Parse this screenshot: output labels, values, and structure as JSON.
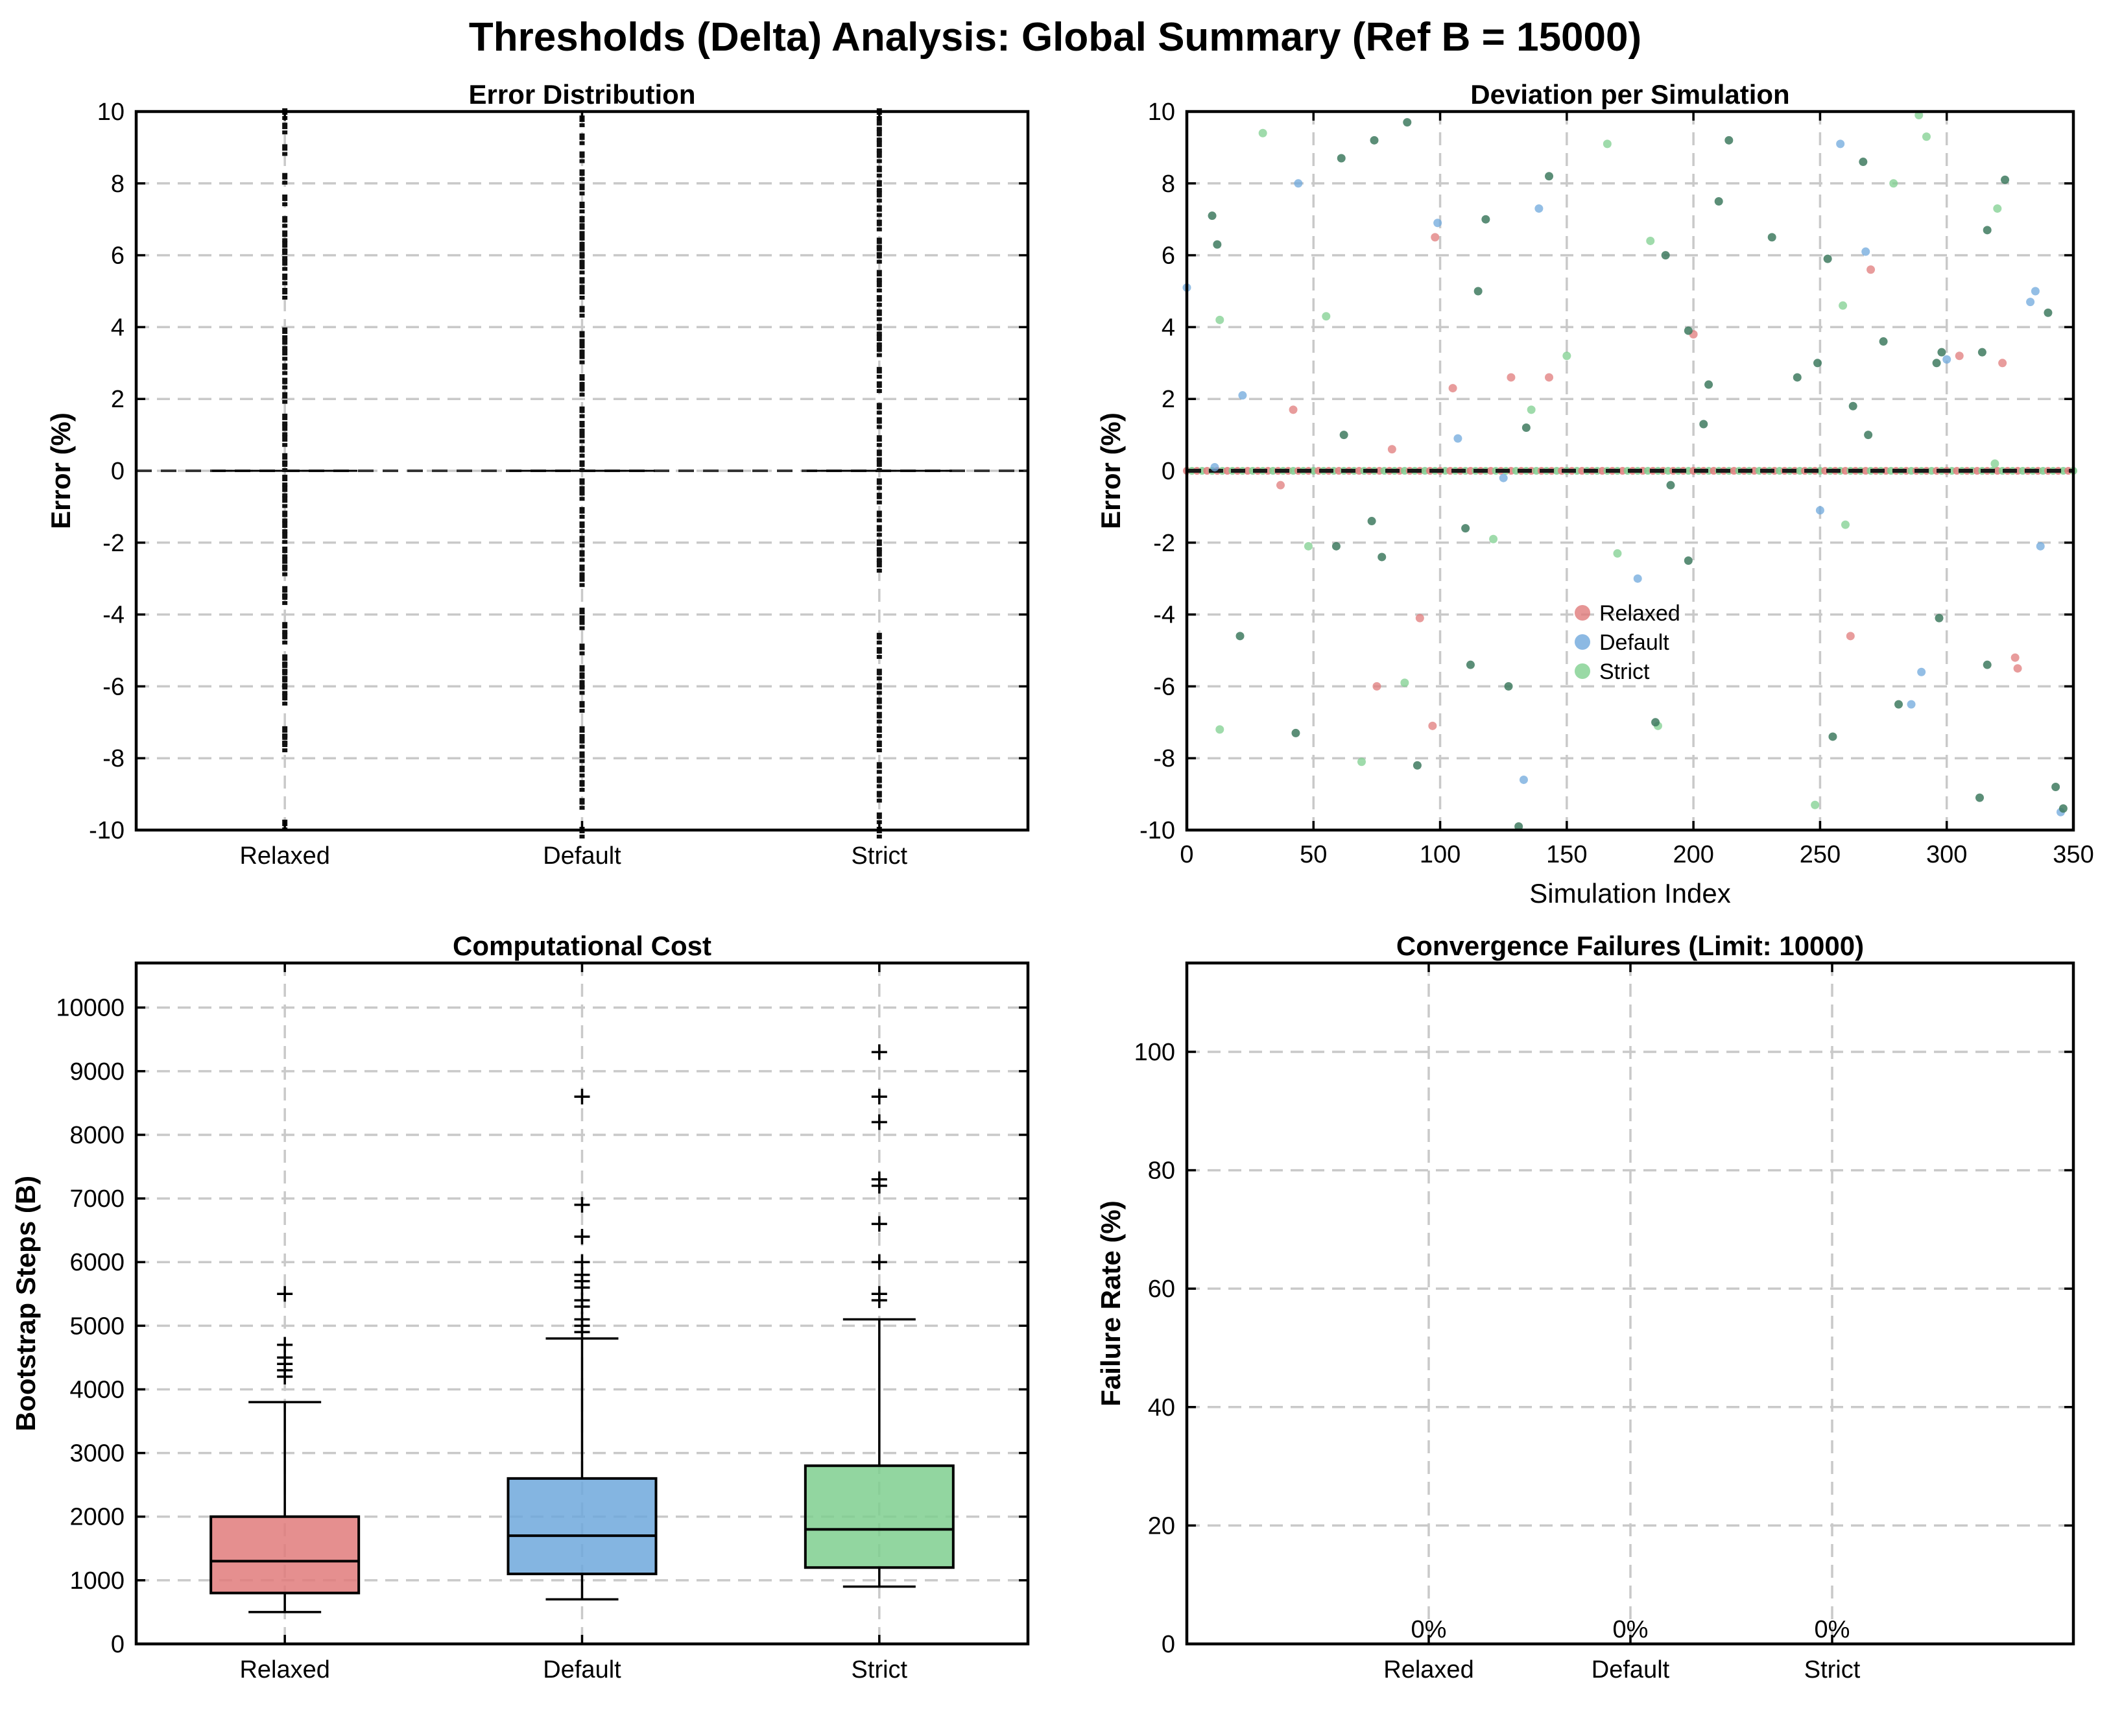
{
  "suptitle": "Thresholds (Delta) Analysis: Global Summary (Ref B = 15000)",
  "colors": {
    "relaxed": "#e07b7b",
    "default": "#6fa8dc",
    "strict": "#7fcf8f",
    "dark": "#3a3a3a"
  },
  "chart_data": [
    {
      "id": "error-distribution",
      "type": "strip",
      "title": "Error Distribution",
      "xlabel": "",
      "ylabel": "Error (%)",
      "categories": [
        "Relaxed",
        "Default",
        "Strict"
      ],
      "ylim": [
        -10,
        10
      ],
      "yticks": [
        -10,
        -8,
        -6,
        -4,
        -2,
        0,
        2,
        4,
        6,
        8,
        10
      ],
      "reference_line": 0,
      "grid": true,
      "series": [
        {
          "category": "Relaxed",
          "values": [
            -9.8,
            -7.6,
            -7.4,
            -7.2,
            -6.3,
            -6.0,
            -5.8,
            -5.6,
            -5.4,
            -5.2,
            -4.6,
            -4.3,
            -3.5,
            -3.3,
            -2.7,
            -2.5,
            -2.2,
            -1.8,
            -1.5,
            -1.2,
            -0.8,
            -0.5,
            -0.2,
            0.2,
            0.4,
            0.9,
            1.2,
            1.5,
            2.1,
            2.5,
            2.9,
            3.3,
            3.6,
            3.9,
            5.0,
            5.4,
            5.8,
            6.1,
            6.3,
            6.6,
            7.0,
            7.6,
            8.2,
            9.0,
            9.6,
            10.0
          ]
        },
        {
          "category": "Default",
          "values": [
            -10.0,
            -9.2,
            -8.7,
            -8.3,
            -7.9,
            -7.5,
            -7.2,
            -6.5,
            -6.0,
            -5.7,
            -5.5,
            -4.9,
            -4.2,
            -3.9,
            -3.0,
            -2.7,
            -2.3,
            -1.9,
            -1.5,
            -1.1,
            -0.6,
            -0.3,
            0.2,
            0.6,
            1.0,
            1.3,
            1.7,
            2.3,
            2.6,
            3.2,
            3.5,
            3.8,
            4.5,
            5.0,
            5.3,
            5.7,
            6.0,
            6.2,
            6.5,
            6.8,
            7.0,
            7.4,
            7.9,
            8.3,
            8.8,
            9.3,
            9.8
          ]
        },
        {
          "category": "Strict",
          "values": [
            -10.0,
            -9.6,
            -9.0,
            -8.6,
            -8.2,
            -7.6,
            -7.2,
            -6.8,
            -6.4,
            -6.0,
            -5.6,
            -5.0,
            -4.6,
            -2.6,
            -2.3,
            -2.0,
            -1.6,
            -1.2,
            -0.7,
            -0.3,
            0.2,
            0.5,
            0.9,
            1.4,
            1.8,
            2.4,
            2.8,
            3.4,
            3.7,
            4.0,
            4.4,
            4.8,
            5.2,
            5.5,
            6.0,
            6.2,
            6.4,
            6.9,
            7.3,
            7.7,
            8.0,
            8.4,
            8.8,
            9.1,
            9.4,
            9.7,
            10.0
          ]
        }
      ]
    },
    {
      "id": "deviation-per-simulation",
      "type": "scatter",
      "title": "Deviation per Simulation",
      "xlabel": "Simulation Index",
      "ylabel": "Error (%)",
      "xlim": [
        0,
        350
      ],
      "ylim": [
        -10,
        10
      ],
      "xticks": [
        0,
        50,
        100,
        150,
        200,
        250,
        300,
        350
      ],
      "yticks": [
        -10,
        -8,
        -6,
        -4,
        -2,
        0,
        2,
        4,
        6,
        8,
        10
      ],
      "legend_position": "center",
      "grid": true,
      "series": [
        {
          "name": "Relaxed",
          "points": [
            [
              37,
              -0.4
            ],
            [
              42,
              1.7
            ],
            [
              75,
              -6.0
            ],
            [
              81,
              0.6
            ],
            [
              92,
              -4.1
            ],
            [
              97,
              -7.1
            ],
            [
              98,
              6.5
            ],
            [
              105,
              2.3
            ],
            [
              128,
              2.6
            ],
            [
              143,
              2.6
            ],
            [
              200,
              3.8
            ],
            [
              262,
              -4.6
            ],
            [
              270,
              5.6
            ],
            [
              305,
              3.2
            ],
            [
              322,
              3.0
            ],
            [
              327,
              -5.2
            ],
            [
              328,
              -5.5
            ]
          ]
        },
        {
          "name": "Default",
          "points": [
            [
              0,
              5.1
            ],
            [
              11,
              0.1
            ],
            [
              22,
              2.1
            ],
            [
              44,
              8.0
            ],
            [
              99,
              6.9
            ],
            [
              107,
              0.9
            ],
            [
              125,
              -0.2
            ],
            [
              133,
              -8.6
            ],
            [
              139,
              7.3
            ],
            [
              178,
              -3.0
            ],
            [
              250,
              -1.1
            ],
            [
              258,
              9.1
            ],
            [
              268,
              6.1
            ],
            [
              286,
              -6.5
            ],
            [
              290,
              -5.6
            ],
            [
              300,
              3.1
            ],
            [
              333,
              4.7
            ],
            [
              335,
              5.0
            ],
            [
              337,
              -2.1
            ],
            [
              345,
              -9.5
            ]
          ]
        },
        {
          "name": "Strict",
          "points": [
            [
              13,
              -7.2
            ],
            [
              13,
              4.2
            ],
            [
              30,
              9.4
            ],
            [
              48,
              -2.1
            ],
            [
              55,
              4.3
            ],
            [
              69,
              -8.1
            ],
            [
              86,
              -5.9
            ],
            [
              121,
              -1.9
            ],
            [
              136,
              1.7
            ],
            [
              150,
              3.2
            ],
            [
              166,
              9.1
            ],
            [
              170,
              -2.3
            ],
            [
              183,
              6.4
            ],
            [
              186,
              -7.1
            ],
            [
              248,
              -9.3
            ],
            [
              259,
              4.6
            ],
            [
              260,
              -1.5
            ],
            [
              279,
              8.0
            ],
            [
              292,
              9.3
            ],
            [
              289,
              9.9
            ],
            [
              320,
              7.3
            ],
            [
              319,
              0.2
            ]
          ]
        },
        {
          "name": "",
          "points": [
            [
              10,
              7.1
            ],
            [
              12,
              6.3
            ],
            [
              21,
              -4.6
            ],
            [
              43,
              -7.3
            ],
            [
              59,
              -2.1
            ],
            [
              61,
              8.7
            ],
            [
              62,
              1.0
            ],
            [
              73,
              -1.4
            ],
            [
              74,
              9.2
            ],
            [
              77,
              -2.4
            ],
            [
              87,
              9.7
            ],
            [
              91,
              -8.2
            ],
            [
              110,
              -1.6
            ],
            [
              112,
              -5.4
            ],
            [
              115,
              5.0
            ],
            [
              118,
              7.0
            ],
            [
              127,
              -6.0
            ],
            [
              131,
              -9.9
            ],
            [
              134,
              1.2
            ],
            [
              143,
              8.2
            ],
            [
              185,
              -7.0
            ],
            [
              189,
              6.0
            ],
            [
              191,
              -0.4
            ],
            [
              198,
              -2.5
            ],
            [
              198,
              3.9
            ],
            [
              204,
              1.3
            ],
            [
              206,
              2.4
            ],
            [
              210,
              7.5
            ],
            [
              214,
              9.2
            ],
            [
              231,
              6.5
            ],
            [
              241,
              2.6
            ],
            [
              249,
              3.0
            ],
            [
              253,
              5.9
            ],
            [
              255,
              -7.4
            ],
            [
              263,
              1.8
            ],
            [
              267,
              8.6
            ],
            [
              269,
              1.0
            ],
            [
              275,
              3.6
            ],
            [
              281,
              -6.5
            ],
            [
              296,
              3.0
            ],
            [
              297,
              -4.1
            ],
            [
              298,
              3.3
            ],
            [
              313,
              -9.1
            ],
            [
              314,
              3.3
            ],
            [
              316,
              -5.4
            ],
            [
              316,
              6.7
            ],
            [
              323,
              8.1
            ],
            [
              340,
              4.4
            ],
            [
              343,
              -8.8
            ],
            [
              346,
              -9.4
            ]
          ]
        }
      ],
      "baseline_points_y": 0
    },
    {
      "id": "computational-cost",
      "type": "box",
      "title": "Computational Cost",
      "xlabel": "",
      "ylabel": "Bootstrap Steps (B)",
      "categories": [
        "Relaxed",
        "Default",
        "Strict"
      ],
      "ylim": [
        0,
        10700
      ],
      "yticks": [
        0,
        1000,
        2000,
        3000,
        4000,
        5000,
        6000,
        7000,
        8000,
        9000,
        10000
      ],
      "grid": true,
      "boxes": [
        {
          "name": "Relaxed",
          "whisker_low": 500,
          "q1": 800,
          "median": 1300,
          "q3": 2000,
          "whisker_high": 3800,
          "outliers": [
            4200,
            4300,
            4400,
            4500,
            4700,
            5500
          ]
        },
        {
          "name": "Default",
          "whisker_low": 700,
          "q1": 1100,
          "median": 1700,
          "q3": 2600,
          "whisker_high": 4800,
          "outliers": [
            4900,
            5000,
            5100,
            5300,
            5400,
            5600,
            5700,
            5800,
            6000,
            6400,
            6900,
            8600
          ]
        },
        {
          "name": "Strict",
          "whisker_low": 900,
          "q1": 1200,
          "median": 1800,
          "q3": 2800,
          "whisker_high": 5100,
          "outliers": [
            5400,
            5500,
            6000,
            6600,
            7200,
            7300,
            8200,
            8600,
            9300
          ]
        }
      ]
    },
    {
      "id": "convergence-failures",
      "type": "bar",
      "title": "Convergence Failures (Limit: 10000)",
      "xlabel": "",
      "ylabel": "Failure Rate (%)",
      "categories": [
        "Relaxed",
        "Default",
        "Strict"
      ],
      "values": [
        0,
        0,
        0
      ],
      "data_labels": [
        "0%",
        "0%",
        "0%"
      ],
      "ylim": [
        0,
        115
      ],
      "yticks": [
        0,
        20,
        40,
        60,
        80,
        100
      ],
      "grid": true
    }
  ]
}
